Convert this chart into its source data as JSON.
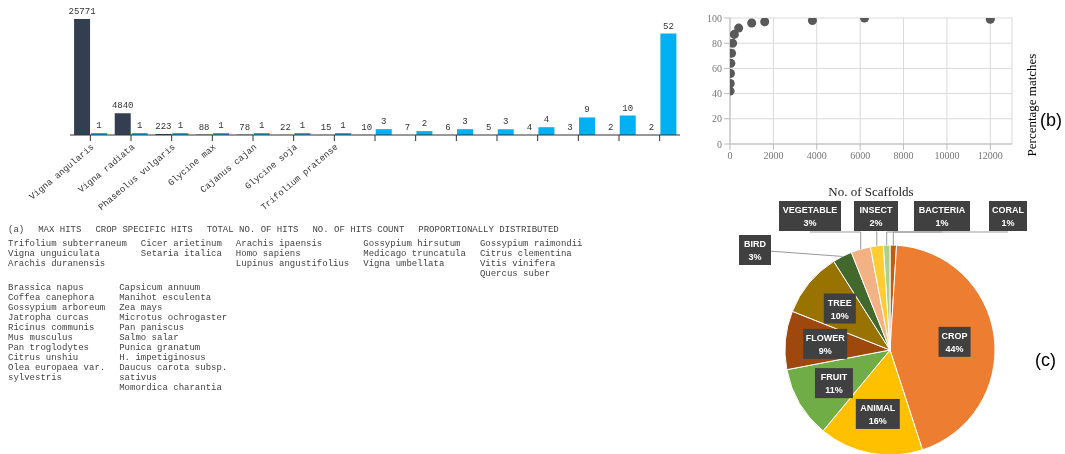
{
  "chart_data": [
    {
      "type": "bar",
      "categories": [
        "Vigna angularis",
        "Vigna radiata",
        "Phaseolus vulgaris",
        "Glycine max",
        "Cajanus cajan",
        "Glycine soja",
        "Trifolium pratense",
        null,
        null,
        null,
        null,
        null,
        null,
        null,
        null
      ],
      "series": [
        {
          "color": "#333f50",
          "values": [
            25771,
            4840,
            223,
            88,
            78,
            22,
            15,
            10,
            7,
            6,
            5,
            4,
            3,
            2,
            2
          ]
        },
        {
          "color": "#00b0f0",
          "axis": "y2",
          "values": [
            1,
            1,
            1,
            1,
            1,
            1,
            1,
            3,
            2,
            3,
            3,
            4,
            9,
            10,
            52
          ]
        }
      ],
      "data_labels": true,
      "tick_labels": "x",
      "grid": false,
      "legend": false,
      "annotations": [
        "(a)",
        "MAX HITS",
        "CROP SPECIFIC HITS",
        "TOTAL NO. OF HITS",
        "NO. OF HITS COUNT",
        "PROPORTIONALLY DISTRIBUTED",
        "Trifolium subterraneum\nVigna unguiculata\nArachis duranensis",
        "Cicer arietinum\nSetaria italica",
        "Arachis ipaensis\nHomo sapiens\nLupinus angustifolius",
        "Gossypium hirsutum\nMedicago truncatula\nVigna umbellata",
        "Gossypium raimondii\nCitrus clementina\nVitis vinifera\nQuercus suber",
        "Brassica napus\nCoffea canephora\nGossypium arboreum\nJatropha curcas\nRicinus communis\nMus musculus\nPan troglodytes\nCitrus unshiu\nOlea europaea var.\nsylvestris",
        "Capsicum annuum\nManihot esculenta\nZea mays\nMicrotus ochrogaster\nPan paniscus\nSalmo salar\nPunica granatum\nH. impetiginosus\nDaucus carota subsp.\nsativus\nMomordica charantia"
      ]
    },
    {
      "type": "scatter",
      "xlabel": "No. of Scaffolds",
      "ylabel": "Percentage matches",
      "xlim": [
        0,
        13000
      ],
      "xticks": [
        0,
        2000,
        4000,
        6000,
        8000,
        10000,
        12000
      ],
      "ylim": [
        0,
        100
      ],
      "yticks": [
        0,
        20,
        40,
        60,
        80,
        100
      ],
      "grid": true,
      "marker": "circle",
      "legend": false,
      "x": [
        5,
        10,
        20,
        40,
        70,
        120,
        200,
        400,
        1000,
        1600,
        3800,
        6200,
        12000
      ],
      "series": [
        {
          "color": "#595959",
          "values": [
            42,
            48,
            56,
            64,
            72,
            80,
            87,
            92,
            96,
            97,
            98,
            100,
            99
          ]
        }
      ],
      "annotations": [
        "(b)"
      ]
    },
    {
      "type": "pie",
      "categories": [
        "CORAL",
        "CROP",
        "ANIMAL",
        "FRUIT",
        "FLOWER",
        "TREE",
        "BIRD",
        "VEGETABLE",
        "INSECT",
        "BACTERIA"
      ],
      "values": [
        1,
        44,
        16,
        11,
        9,
        10,
        3,
        3,
        2,
        1
      ],
      "colors": [
        "#c55a11",
        "#ed7d31",
        "#ffc000",
        "#70ad47",
        "#9e480e",
        "#997300",
        "#43682b",
        "#f4b183",
        "#ffcd33",
        "#a9d18e"
      ],
      "value_labels": [
        "1%",
        "44%",
        "16%",
        "11%",
        "9%",
        "10%",
        "3%",
        "3%",
        "2%",
        "1%"
      ],
      "legend": false,
      "annotations": [
        "(c)"
      ]
    }
  ]
}
